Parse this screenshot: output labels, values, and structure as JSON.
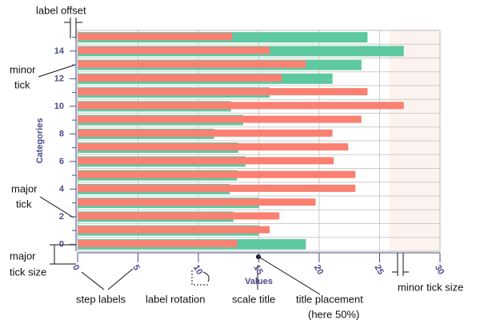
{
  "chart_data": {
    "type": "hbar",
    "categories": [
      "0",
      null,
      "2",
      null,
      "4",
      null,
      "6",
      null,
      "8",
      null,
      "10",
      null,
      "12",
      null,
      "14",
      null
    ],
    "series": [
      {
        "color": "#5ec8a0",
        "values": [
          18.9,
          15,
          12.9,
          15,
          12.6,
          13.2,
          13.9,
          13.3,
          11.3,
          13.7,
          12.7,
          15.9,
          21.1,
          23.5,
          27,
          24
        ]
      },
      {
        "color": "#fa8072",
        "values": [
          13.2,
          15.9,
          16.7,
          19.7,
          23,
          23,
          21.2,
          22.4,
          21.1,
          23.5,
          27,
          24,
          16.9,
          18.9,
          15.9,
          12.8
        ]
      }
    ],
    "xlim": [
      0,
      30
    ],
    "xticks": [
      0,
      5,
      10,
      15,
      20,
      25,
      30
    ],
    "x_label": "Values",
    "y_label": "Categories",
    "grid": true,
    "annotations": [
      [
        "label offset"
      ],
      [
        "minor",
        "tick"
      ],
      [
        "major",
        "tick"
      ],
      [
        "major",
        "tick size"
      ],
      [
        "step labels"
      ],
      [
        "label rotation"
      ],
      [
        "scale title"
      ],
      [
        "title placement",
        "(here 50%)"
      ],
      [
        "minor tick size"
      ]
    ]
  }
}
